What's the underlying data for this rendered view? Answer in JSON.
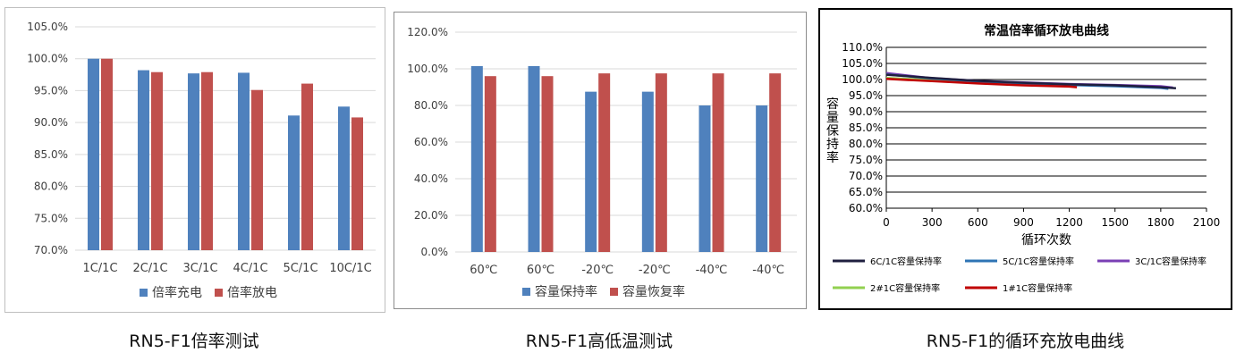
{
  "colors": {
    "blue": "#4F81BD",
    "red": "#C0504D",
    "black_line": "#1F1F3F",
    "blue_line": "#2E74B5",
    "purple_line": "#7A3FB5",
    "green_line": "#92D050",
    "red_line": "#C00000"
  },
  "captions": [
    "RN5-F1倍率测试",
    "RN5-F1高低温测试",
    "RN5-F1的循环充放电曲线"
  ],
  "chart_data": [
    {
      "type": "bar",
      "categories": [
        "1C/1C",
        "2C/1C",
        "3C/1C",
        "4C/1C",
        "5C/1C",
        "10C/1C"
      ],
      "series": [
        {
          "name": "倍率充电",
          "values": [
            100.0,
            98.2,
            97.7,
            97.8,
            91.1,
            92.5
          ]
        },
        {
          "name": "倍率放电",
          "values": [
            100.0,
            97.9,
            97.9,
            95.1,
            96.1,
            90.8
          ]
        }
      ],
      "ylim": [
        70,
        105
      ],
      "yticks": [
        "70.0%",
        "75.0%",
        "80.0%",
        "85.0%",
        "90.0%",
        "95.0%",
        "100.0%",
        "105.0%"
      ],
      "grid": true,
      "legend": "bottom"
    },
    {
      "type": "bar",
      "categories": [
        "60℃",
        "60℃",
        "-20℃",
        "-20℃",
        "-40℃",
        "-40℃"
      ],
      "series": [
        {
          "name": "容量保持率",
          "values": [
            101.5,
            101.5,
            87.5,
            87.5,
            80.0,
            80.0
          ]
        },
        {
          "name": "容量恢复率",
          "values": [
            96.0,
            96.0,
            97.5,
            97.5,
            97.5,
            97.5
          ]
        }
      ],
      "ylim": [
        0,
        120
      ],
      "yticks": [
        "0.0%",
        "20.0%",
        "40.0%",
        "60.0%",
        "80.0%",
        "100.0%",
        "120.0%"
      ],
      "grid": true,
      "legend": "bottom"
    },
    {
      "type": "line",
      "title": "常温倍率循环放电曲线",
      "xlabel": "循环次数",
      "ylabel": "容量保持率",
      "xlim": [
        0,
        2100
      ],
      "ylim": [
        60,
        110
      ],
      "xticks": [
        "0",
        "300",
        "600",
        "900",
        "1200",
        "1500",
        "1800",
        "2100"
      ],
      "yticks": [
        "60.0%",
        "65.0%",
        "70.0%",
        "75.0%",
        "80.0%",
        "85.0%",
        "90.0%",
        "95.0%",
        "100.0%",
        "105.0%",
        "110.0%"
      ],
      "grid": true,
      "legend": "bottom",
      "series": [
        {
          "name": "6C/1C容量保持率",
          "x": [
            0,
            300,
            600,
            900,
            1200,
            1500,
            1800,
            1900
          ],
          "y": [
            101.5,
            100.5,
            99.6,
            99.0,
            98.5,
            98.2,
            97.6,
            97.3
          ]
        },
        {
          "name": "5C/1C容量保持率",
          "x": [
            0,
            300,
            600,
            900,
            1200,
            1500,
            1800,
            1850
          ],
          "y": [
            101.6,
            100.3,
            99.4,
            98.8,
            98.3,
            97.9,
            97.4,
            97.1
          ]
        },
        {
          "name": "3C/1C容量保持率",
          "x": [
            0,
            300,
            600,
            900,
            1200,
            1500,
            1800,
            1880
          ],
          "y": [
            102.0,
            100.4,
            99.6,
            99.1,
            98.6,
            98.3,
            97.9,
            97.5
          ]
        },
        {
          "name": "2#1C容量保持率",
          "x": [
            0,
            300,
            600,
            900,
            1200,
            1250
          ],
          "y": [
            100.5,
            99.8,
            99.0,
            98.5,
            98.0,
            97.8
          ]
        },
        {
          "name": "1#1C容量保持率",
          "x": [
            0,
            300,
            600,
            900,
            1200,
            1250
          ],
          "y": [
            100.2,
            99.5,
            98.8,
            98.2,
            97.8,
            97.6
          ]
        }
      ]
    }
  ]
}
